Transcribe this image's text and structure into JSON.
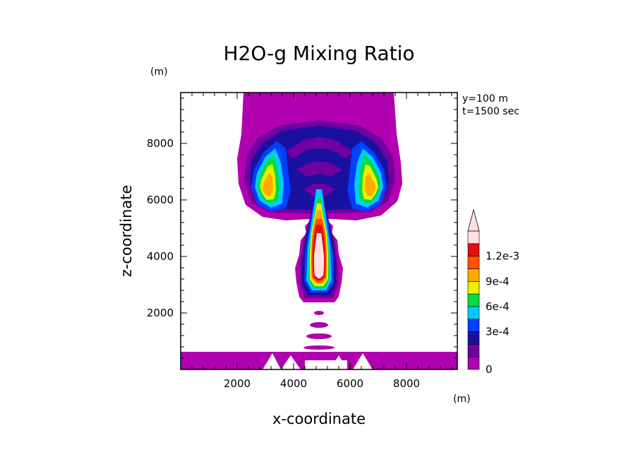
{
  "chart_data": {
    "type": "contour",
    "title": "H2O-g Mixing Ratio",
    "xlabel": "x-coordinate",
    "ylabel": "z-coordinate",
    "x_unit": "(m)",
    "z_unit": "(m)",
    "xlim": [
      0,
      9800
    ],
    "zlim": [
      0,
      9800
    ],
    "x_ticks": [
      2000,
      4000,
      6000,
      8000
    ],
    "z_ticks": [
      2000,
      4000,
      6000,
      8000
    ],
    "x_tick_labels": [
      "2000",
      "4000",
      "6000",
      "8000"
    ],
    "z_tick_labels": [
      "2000",
      "4000",
      "6000",
      "8000"
    ],
    "annotations": [
      "y=100 m",
      "t=1500 sec"
    ],
    "colorbar": {
      "levels": [
        0,
        0.00015,
        0.0003,
        0.00045,
        0.0006,
        0.00075,
        0.0009,
        0.00105,
        0.0012,
        0.00135
      ],
      "colors": [
        "#b000b0",
        "#7000a0",
        "#1a10a0",
        "#0040ff",
        "#00ccff",
        "#00dd40",
        "#eeee00",
        "#ffaa00",
        "#ff5000",
        "#e01010",
        "#ffe0e0"
      ],
      "tick_values": [
        0,
        0.0003,
        0.0006,
        0.0009,
        0.0012
      ],
      "tick_labels": [
        "0",
        "3e-4",
        "6e-4",
        "9e-4",
        "1.2e-3"
      ],
      "extend": "max"
    },
    "features": [
      {
        "name": "surface moist layer",
        "z_range": [
          0,
          600
        ],
        "x_range": [
          0,
          9800
        ],
        "level_index": 0
      },
      {
        "name": "plume column",
        "x_center": 5000,
        "z_range": [
          2500,
          5500
        ],
        "peak_level_index": 10
      },
      {
        "name": "upper cap / anvil",
        "x_range": [
          2200,
          7800
        ],
        "z_range": [
          5500,
          9800
        ],
        "peak_level_index": 7
      },
      {
        "name": "isolated puffs",
        "x_center": 5000,
        "z_values": [
          800,
          1200,
          1600,
          2050
        ]
      }
    ]
  }
}
